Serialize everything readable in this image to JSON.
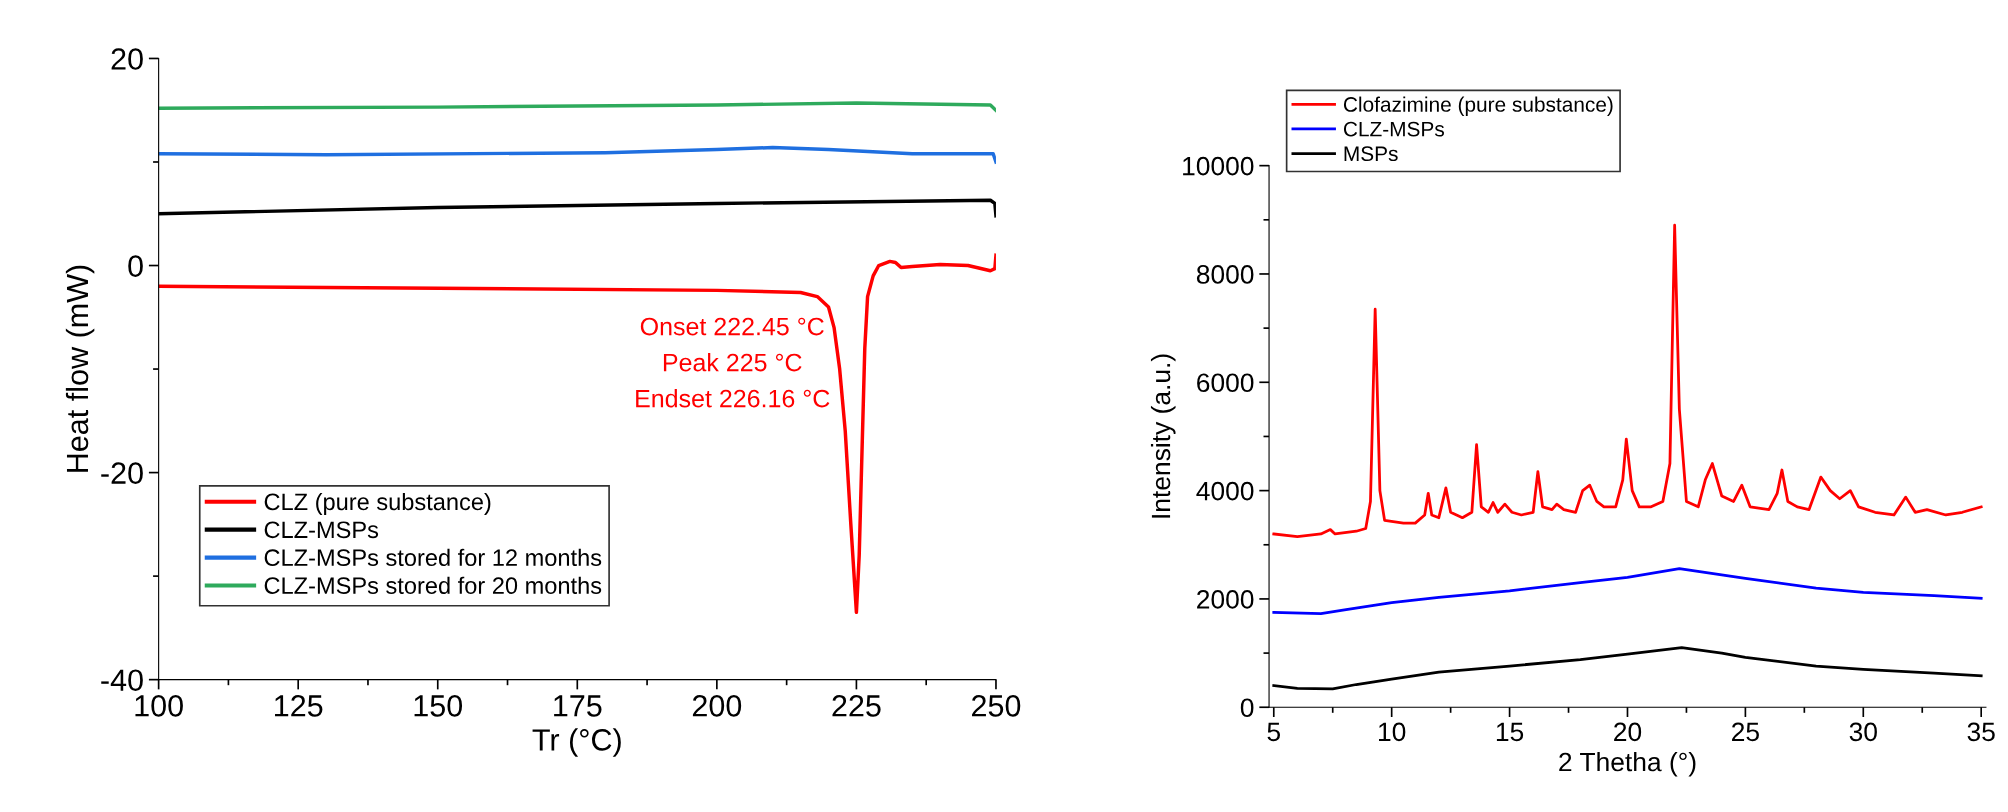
{
  "chart_data": [
    {
      "type": "line",
      "xlabel": "Tr (°C)",
      "ylabel": "Heat flow (mW)",
      "xlim": [
        100,
        250
      ],
      "ylim": [
        -40,
        20
      ],
      "xticks": [
        100,
        125,
        150,
        175,
        200,
        225,
        250
      ],
      "yticks": [
        -40,
        -20,
        0,
        20
      ],
      "legend": "bottom left",
      "grid": false,
      "annotations": [
        "Onset 222.45 °C",
        "Peak 225 °C",
        "Endset 226.16 °C"
      ],
      "series": [
        {
          "name": "CLZ (pure substance)",
          "color": "#ff0000",
          "x": [
            100,
            150,
            200,
            215,
            218,
            220,
            221,
            222,
            223,
            224,
            225,
            225.5,
            226,
            226.5,
            227,
            228,
            229,
            231,
            232,
            233,
            235,
            240,
            245,
            249,
            249.8,
            250
          ],
          "values": [
            -2,
            -2.2,
            -2.4,
            -2.6,
            -3,
            -4,
            -6,
            -10,
            -16,
            -25,
            -33.5,
            -28,
            -18,
            -8,
            -3,
            -1,
            0,
            0.4,
            0.3,
            -0.2,
            -0.1,
            0.1,
            0,
            -0.5,
            -0.3,
            1
          ]
        },
        {
          "name": "CLZ-MSPs",
          "color": "#000000",
          "x": [
            100,
            150,
            200,
            249,
            249.8,
            250
          ],
          "values": [
            5,
            5.6,
            6,
            6.3,
            6,
            4.8
          ]
        },
        {
          "name": "CLZ-MSPs stored for 12 months",
          "color": "#1f6fe0",
          "x": [
            100,
            130,
            180,
            200,
            210,
            220,
            235,
            249.5,
            250
          ],
          "values": [
            10.8,
            10.7,
            10.9,
            11.2,
            11.4,
            11.2,
            10.8,
            10.8,
            10
          ]
        },
        {
          "name": "CLZ-MSPs stored for 20 months",
          "color": "#2eaa5c",
          "x": [
            100,
            150,
            200,
            225,
            249,
            250
          ],
          "values": [
            15.2,
            15.3,
            15.5,
            15.7,
            15.5,
            15
          ]
        }
      ]
    },
    {
      "type": "line",
      "xlabel": "2 Thetha (°)",
      "ylabel": "Intensity (a.u.)",
      "xlim": [
        4.8,
        35.2
      ],
      "ylim": [
        0,
        10000
      ],
      "xticks": [
        5,
        10,
        15,
        20,
        25,
        30,
        35
      ],
      "yticks": [
        0,
        2000,
        4000,
        6000,
        8000,
        10000
      ],
      "legend": "top left",
      "grid": false,
      "series": [
        {
          "name": "Clofazimine (pure substance)",
          "color": "#ff0000",
          "x": [
            5,
            6,
            7,
            7.4,
            7.6,
            8.5,
            8.9,
            9.1,
            9.3,
            9.5,
            9.7,
            10.5,
            11,
            11.4,
            11.55,
            11.7,
            12,
            12.3,
            12.5,
            13,
            13.4,
            13.6,
            13.8,
            14.1,
            14.3,
            14.5,
            14.8,
            15.1,
            15.5,
            16,
            16.2,
            16.4,
            16.8,
            17,
            17.3,
            17.8,
            18.1,
            18.4,
            18.7,
            19,
            19.5,
            19.8,
            19.95,
            20.2,
            20.5,
            21,
            21.5,
            21.8,
            22,
            22.2,
            22.5,
            23,
            23.3,
            23.6,
            24,
            24.5,
            24.85,
            25.2,
            26,
            26.35,
            26.55,
            26.8,
            27.2,
            27.7,
            28.2,
            28.6,
            29,
            29.45,
            29.8,
            30.5,
            31.3,
            31.8,
            32.2,
            32.7,
            33.5,
            34.2,
            35
          ],
          "values": [
            3200,
            3150,
            3200,
            3280,
            3200,
            3250,
            3300,
            3800,
            7350,
            4000,
            3450,
            3400,
            3400,
            3550,
            3950,
            3550,
            3500,
            4050,
            3600,
            3500,
            3600,
            4850,
            3700,
            3600,
            3780,
            3600,
            3750,
            3600,
            3550,
            3600,
            4350,
            3700,
            3650,
            3750,
            3650,
            3600,
            4000,
            4100,
            3800,
            3700,
            3700,
            4200,
            4950,
            4000,
            3700,
            3700,
            3800,
            4500,
            8900,
            5500,
            3800,
            3700,
            4200,
            4500,
            3900,
            3800,
            4100,
            3700,
            3650,
            3950,
            4380,
            3800,
            3700,
            3650,
            4250,
            4000,
            3850,
            4000,
            3700,
            3600,
            3550,
            3880,
            3600,
            3650,
            3550,
            3600,
            3700
          ]
        },
        {
          "name": "CLZ-MSPs",
          "color": "#0000ff",
          "x": [
            5,
            7,
            8,
            10,
            12,
            15,
            18,
            20,
            22.2,
            25,
            28,
            30,
            33,
            35
          ],
          "values": [
            1750,
            1730,
            1800,
            1930,
            2030,
            2150,
            2300,
            2400,
            2560,
            2380,
            2200,
            2120,
            2060,
            2010
          ]
        },
        {
          "name": "MSPs",
          "color": "#000000",
          "x": [
            5,
            6,
            7.5,
            8.5,
            10,
            12,
            15,
            18,
            20,
            22.3,
            24,
            25,
            28,
            30,
            33,
            35
          ],
          "values": [
            400,
            350,
            340,
            420,
            520,
            650,
            760,
            880,
            980,
            1100,
            1000,
            920,
            760,
            700,
            630,
            580
          ]
        }
      ]
    }
  ]
}
